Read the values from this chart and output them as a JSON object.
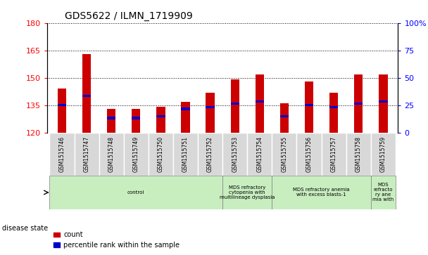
{
  "title": "GDS5622 / ILMN_1719909",
  "samples": [
    "GSM1515746",
    "GSM1515747",
    "GSM1515748",
    "GSM1515749",
    "GSM1515750",
    "GSM1515751",
    "GSM1515752",
    "GSM1515753",
    "GSM1515754",
    "GSM1515755",
    "GSM1515756",
    "GSM1515757",
    "GSM1515758",
    "GSM1515759"
  ],
  "counts": [
    144,
    163,
    133,
    133,
    134,
    137,
    142,
    149,
    152,
    136,
    148,
    142,
    152,
    152
  ],
  "percentile_values": [
    135,
    140,
    128,
    128,
    129,
    133,
    134,
    136,
    137,
    129,
    135,
    134,
    136,
    137
  ],
  "ymin": 120,
  "ymax": 180,
  "yticks": [
    120,
    135,
    150,
    165,
    180
  ],
  "right_yticks": [
    0,
    25,
    50,
    75,
    100
  ],
  "bar_color": "#cc0000",
  "percentile_color": "#0000cc",
  "label_bg_color": "#d8d8d8",
  "disease_groups": [
    {
      "label": "control",
      "start": 0,
      "end": 7
    },
    {
      "label": "MDS refractory\ncytopenia with\nmultilineage dysplasia",
      "start": 7,
      "end": 9
    },
    {
      "label": "MDS refractory anemia\nwith excess blasts-1",
      "start": 9,
      "end": 13
    },
    {
      "label": "MDS\nrefracto\nry ane\nmia with",
      "start": 13,
      "end": 14
    }
  ],
  "disease_group_color": "#c8eec0",
  "disease_state_label": "disease state",
  "legend_count": "count",
  "legend_percentile": "percentile rank within the sample",
  "bar_width": 0.35
}
